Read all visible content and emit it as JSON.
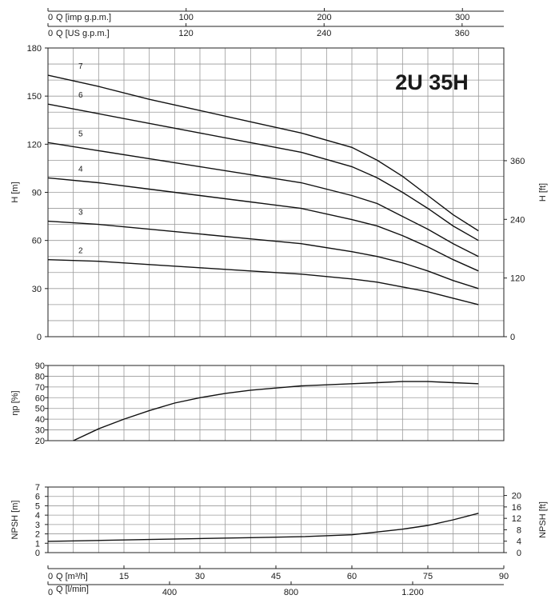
{
  "chart_data": [
    {
      "type": "line",
      "name": "head",
      "title": "2U 35H",
      "ylabel": "H [m]",
      "ylabel_right": "H [ft]",
      "xlim": [
        0,
        90
      ],
      "ylim": [
        0,
        180
      ],
      "yticks": [
        "0",
        "30",
        "60",
        "90",
        "120",
        "150",
        "180"
      ],
      "yticks_right": [
        "0",
        "120",
        "240",
        "360"
      ],
      "x": [
        0,
        10,
        20,
        30,
        40,
        50,
        60,
        65,
        70,
        75,
        80,
        85
      ],
      "series": [
        {
          "name": "7",
          "values": [
            163,
            156,
            148,
            141,
            134,
            127,
            118,
            110,
            100,
            88,
            76,
            66
          ]
        },
        {
          "name": "6",
          "values": [
            145,
            139,
            133,
            127,
            121,
            115,
            106,
            99,
            90,
            80,
            69,
            60
          ]
        },
        {
          "name": "5",
          "values": [
            121,
            116,
            111,
            106,
            101,
            96,
            88,
            83,
            75,
            67,
            58,
            50
          ]
        },
        {
          "name": "4",
          "values": [
            99,
            96,
            92,
            88,
            84,
            80,
            73,
            69,
            63,
            56,
            48,
            41
          ]
        },
        {
          "name": "3",
          "values": [
            72,
            70,
            67,
            64,
            61,
            58,
            53,
            50,
            46,
            41,
            35,
            30
          ]
        },
        {
          "name": "2",
          "values": [
            48,
            47,
            45,
            43,
            41,
            39,
            36,
            34,
            31,
            28,
            24,
            20
          ]
        }
      ]
    },
    {
      "type": "line",
      "name": "efficiency",
      "ylabel": "ηp [%]",
      "ylim": [
        20,
        90
      ],
      "yticks": [
        "20",
        "30",
        "40",
        "50",
        "60",
        "70",
        "80",
        "90"
      ],
      "x": [
        5,
        10,
        15,
        20,
        25,
        30,
        35,
        40,
        45,
        50,
        55,
        60,
        65,
        70,
        75,
        80,
        85
      ],
      "values": [
        20,
        31,
        40,
        48,
        55,
        60,
        64,
        67,
        69,
        71,
        72,
        73,
        74,
        75,
        75,
        74,
        73
      ]
    },
    {
      "type": "line",
      "name": "npsh",
      "ylabel": "NPSH [m]",
      "ylabel_right": "NPSH [ft]",
      "ylim": [
        0,
        7
      ],
      "yticks": [
        "0",
        "1",
        "2",
        "3",
        "4",
        "5",
        "6",
        "7"
      ],
      "yticks_right": [
        "0",
        "4",
        "8",
        "12",
        "16",
        "20"
      ],
      "x": [
        0,
        10,
        20,
        30,
        40,
        50,
        60,
        65,
        70,
        75,
        80,
        85
      ],
      "values": [
        1.2,
        1.3,
        1.4,
        1.5,
        1.6,
        1.7,
        1.9,
        2.2,
        2.5,
        2.9,
        3.5,
        4.2
      ]
    }
  ],
  "axes": {
    "top1_label": "Q [imp g.p.m.]",
    "top1_ticks": [
      "0",
      "100",
      "200",
      "300"
    ],
    "top2_label": "Q [US g.p.m.]",
    "top2_ticks": [
      "0",
      "120",
      "240",
      "360"
    ],
    "bottom1_label": "Q [m³/h]",
    "bottom1_ticks": [
      "0",
      "15",
      "30",
      "45",
      "60",
      "75",
      "90"
    ],
    "bottom2_label": "Q [l/min]",
    "bottom2_ticks": [
      "0",
      "400",
      "800",
      "1.200"
    ]
  }
}
